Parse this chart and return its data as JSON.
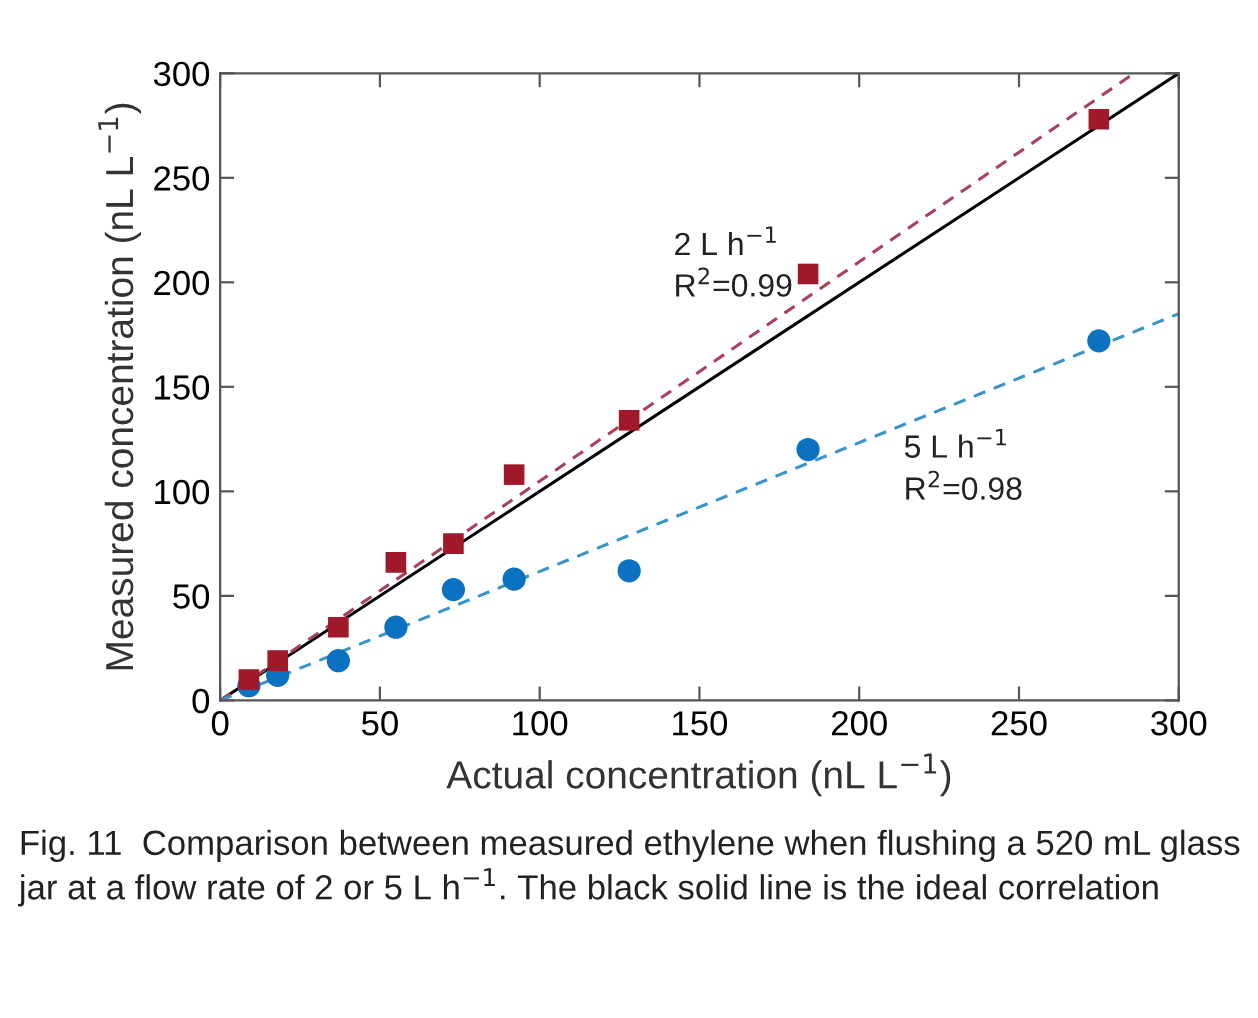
{
  "chart_data": {
    "type": "scatter",
    "xlabel": "Actual concentration (nL L$^{−1}$)",
    "ylabel": "Measured concentration (nL L$^{−1}$)",
    "xlim": [
      0,
      300
    ],
    "ylim": [
      0,
      300
    ],
    "xticks": [
      0,
      50,
      100,
      150,
      200,
      250,
      300
    ],
    "yticks": [
      0,
      50,
      100,
      150,
      200,
      250,
      300
    ],
    "grid": false,
    "legend": false,
    "series": [
      {
        "type": "line",
        "color": "#000000",
        "line_style": "solid",
        "marker": "none",
        "x": [
          0,
          300
        ],
        "values": [
          0,
          300
        ]
      },
      {
        "type": "line",
        "color": "#a8405a",
        "line_style": "dashed",
        "marker": "none",
        "x": [
          0,
          286
        ],
        "values": [
          0,
          300
        ]
      },
      {
        "type": "line",
        "color": "#3a94c8",
        "line_style": "dashed",
        "marker": "none",
        "x": [
          0,
          300
        ],
        "values": [
          0,
          185
        ]
      },
      {
        "color": "#a0182a",
        "marker": "square",
        "x": [
          9,
          18,
          37,
          55,
          73,
          92,
          128,
          184,
          275
        ],
        "values": [
          10,
          19,
          35,
          66,
          75,
          108,
          134,
          204,
          278
        ]
      },
      {
        "color": "#0a72c0",
        "marker": "circle",
        "x": [
          9,
          18,
          37,
          55,
          73,
          92,
          128,
          184,
          275
        ],
        "values": [
          7,
          12,
          19,
          35,
          53,
          58,
          62,
          120,
          172
        ]
      }
    ],
    "annotations": [
      "2 L h$^{−1}$",
      "R$^{2}$=0.99",
      "5 L h$^{−1}$",
      "R$^{2}$=0.98",
      "Fig. 11  Comparison between measured ethylene when flushing a 520 mL glass jar at a flow rate of 2 or 5 L h$^{−1}$. The black solid line is the ideal correlation"
    ]
  }
}
